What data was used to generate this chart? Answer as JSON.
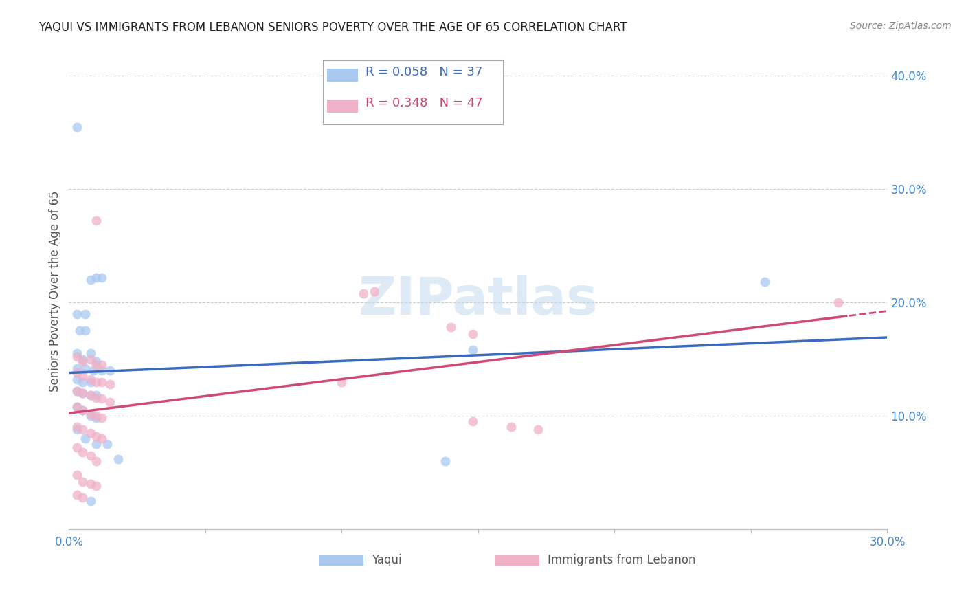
{
  "title": "YAQUI VS IMMIGRANTS FROM LEBANON SENIORS POVERTY OVER THE AGE OF 65 CORRELATION CHART",
  "source": "Source: ZipAtlas.com",
  "ylabel": "Seniors Poverty Over the Age of 65",
  "xlim": [
    0,
    0.3
  ],
  "ylim": [
    0,
    0.42
  ],
  "series1_name": "Yaqui",
  "series1_color": "#a8c8f0",
  "series1_line_color": "#3a6bbf",
  "series2_name": "Immigrants from Lebanon",
  "series2_color": "#f0b0c8",
  "series2_line_color": "#d04878",
  "yaqui_points": [
    [
      0.003,
      0.355
    ],
    [
      0.003,
      0.19
    ],
    [
      0.006,
      0.19
    ],
    [
      0.004,
      0.175
    ],
    [
      0.006,
      0.175
    ],
    [
      0.008,
      0.22
    ],
    [
      0.01,
      0.222
    ],
    [
      0.012,
      0.222
    ],
    [
      0.003,
      0.155
    ],
    [
      0.005,
      0.15
    ],
    [
      0.008,
      0.155
    ],
    [
      0.01,
      0.148
    ],
    [
      0.003,
      0.142
    ],
    [
      0.006,
      0.142
    ],
    [
      0.009,
      0.14
    ],
    [
      0.012,
      0.14
    ],
    [
      0.015,
      0.14
    ],
    [
      0.003,
      0.132
    ],
    [
      0.005,
      0.13
    ],
    [
      0.008,
      0.13
    ],
    [
      0.003,
      0.122
    ],
    [
      0.005,
      0.12
    ],
    [
      0.008,
      0.118
    ],
    [
      0.01,
      0.118
    ],
    [
      0.003,
      0.108
    ],
    [
      0.005,
      0.105
    ],
    [
      0.008,
      0.1
    ],
    [
      0.01,
      0.098
    ],
    [
      0.003,
      0.088
    ],
    [
      0.006,
      0.08
    ],
    [
      0.01,
      0.075
    ],
    [
      0.014,
      0.075
    ],
    [
      0.018,
      0.062
    ],
    [
      0.148,
      0.158
    ],
    [
      0.255,
      0.218
    ],
    [
      0.008,
      0.025
    ],
    [
      0.138,
      0.06
    ]
  ],
  "lebanon_points": [
    [
      0.01,
      0.272
    ],
    [
      0.003,
      0.152
    ],
    [
      0.005,
      0.148
    ],
    [
      0.008,
      0.15
    ],
    [
      0.01,
      0.145
    ],
    [
      0.012,
      0.145
    ],
    [
      0.003,
      0.138
    ],
    [
      0.005,
      0.135
    ],
    [
      0.008,
      0.132
    ],
    [
      0.01,
      0.13
    ],
    [
      0.012,
      0.13
    ],
    [
      0.015,
      0.128
    ],
    [
      0.003,
      0.122
    ],
    [
      0.005,
      0.12
    ],
    [
      0.008,
      0.118
    ],
    [
      0.01,
      0.116
    ],
    [
      0.012,
      0.115
    ],
    [
      0.015,
      0.112
    ],
    [
      0.003,
      0.108
    ],
    [
      0.005,
      0.105
    ],
    [
      0.008,
      0.102
    ],
    [
      0.01,
      0.1
    ],
    [
      0.012,
      0.098
    ],
    [
      0.003,
      0.09
    ],
    [
      0.005,
      0.088
    ],
    [
      0.008,
      0.085
    ],
    [
      0.01,
      0.082
    ],
    [
      0.012,
      0.08
    ],
    [
      0.003,
      0.072
    ],
    [
      0.005,
      0.068
    ],
    [
      0.008,
      0.065
    ],
    [
      0.01,
      0.06
    ],
    [
      0.003,
      0.048
    ],
    [
      0.005,
      0.042
    ],
    [
      0.008,
      0.04
    ],
    [
      0.01,
      0.038
    ],
    [
      0.003,
      0.03
    ],
    [
      0.005,
      0.028
    ],
    [
      0.1,
      0.13
    ],
    [
      0.108,
      0.208
    ],
    [
      0.112,
      0.21
    ],
    [
      0.14,
      0.178
    ],
    [
      0.148,
      0.172
    ],
    [
      0.148,
      0.095
    ],
    [
      0.162,
      0.09
    ],
    [
      0.172,
      0.088
    ],
    [
      0.282,
      0.2
    ]
  ],
  "background_color": "#ffffff",
  "grid_color": "#cccccc",
  "title_color": "#222222",
  "axis_color": "#4488cc",
  "watermark_text": "ZIPatlas",
  "watermark_color": "#c8ddf0",
  "legend_R1": "R = 0.058",
  "legend_N1": "N = 37",
  "legend_R2": "R = 0.348",
  "legend_N2": "N = 47"
}
